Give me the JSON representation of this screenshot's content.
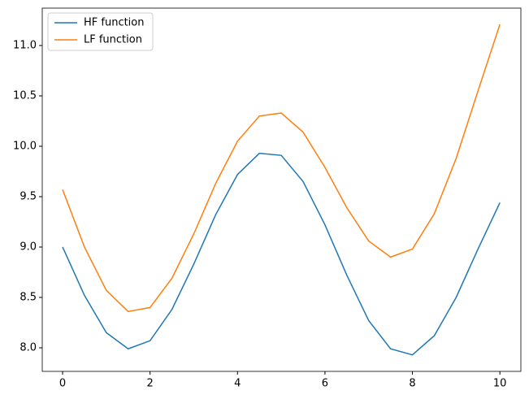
{
  "chart_data": {
    "type": "line",
    "x": [
      0,
      0.5,
      1,
      1.5,
      2,
      2.5,
      3,
      3.5,
      4,
      4.5,
      5,
      5.5,
      6,
      6.5,
      7,
      7.5,
      8,
      8.5,
      9,
      9.5,
      10
    ],
    "series": [
      {
        "name": "HF function",
        "color": "#1f77b4",
        "values": [
          9.0,
          8.52,
          8.15,
          7.99,
          8.07,
          8.38,
          8.83,
          9.32,
          9.72,
          9.93,
          9.91,
          9.65,
          9.22,
          8.72,
          8.27,
          7.99,
          7.93,
          8.12,
          8.5,
          8.98,
          9.44
        ]
      },
      {
        "name": "LF function",
        "color": "#ff7f0e",
        "values": [
          9.57,
          9.0,
          8.57,
          8.36,
          8.4,
          8.69,
          9.13,
          9.63,
          10.05,
          10.3,
          10.33,
          10.14,
          9.79,
          9.39,
          9.06,
          8.9,
          8.98,
          9.33,
          9.88,
          10.55,
          11.21
        ]
      }
    ],
    "xlim": [
      -0.465,
      10.48
    ],
    "ylim": [
      7.766,
      11.371
    ],
    "xticks": [
      0,
      2,
      4,
      6,
      8,
      10
    ],
    "yticks": [
      {
        "value": 8,
        "label": "8.0"
      },
      8.5,
      {
        "value": 9,
        "label": "9.0"
      },
      9.5,
      {
        "value": 10,
        "label": "10.0"
      },
      10.5,
      {
        "value": 11,
        "label": "11.0"
      }
    ],
    "grid": false,
    "legend": "upper-left"
  }
}
